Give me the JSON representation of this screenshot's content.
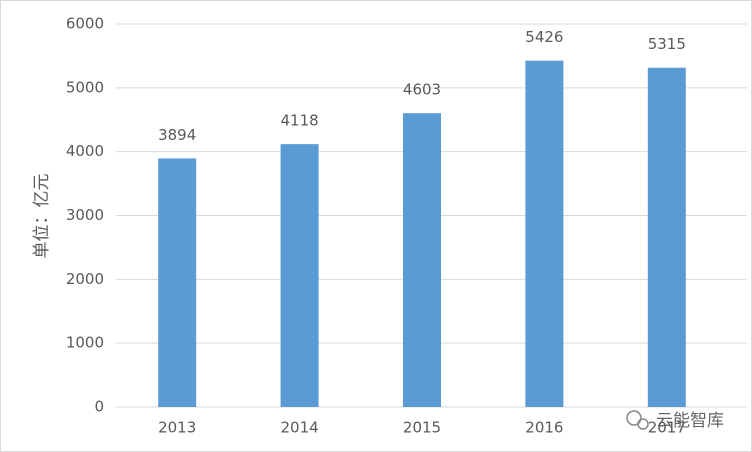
{
  "chart_data": {
    "type": "bar",
    "ylabel": "单位：亿元",
    "categories": [
      "2013",
      "2014",
      "2015",
      "2016",
      "2017"
    ],
    "values": [
      3894,
      4118,
      4603,
      5426,
      5315
    ],
    "color": "#5b9bd5",
    "ylim": [
      0,
      6000
    ],
    "yticks": [
      0,
      1000,
      2000,
      3000,
      4000,
      5000,
      6000
    ],
    "grid": true,
    "watermark": "云能智库"
  }
}
